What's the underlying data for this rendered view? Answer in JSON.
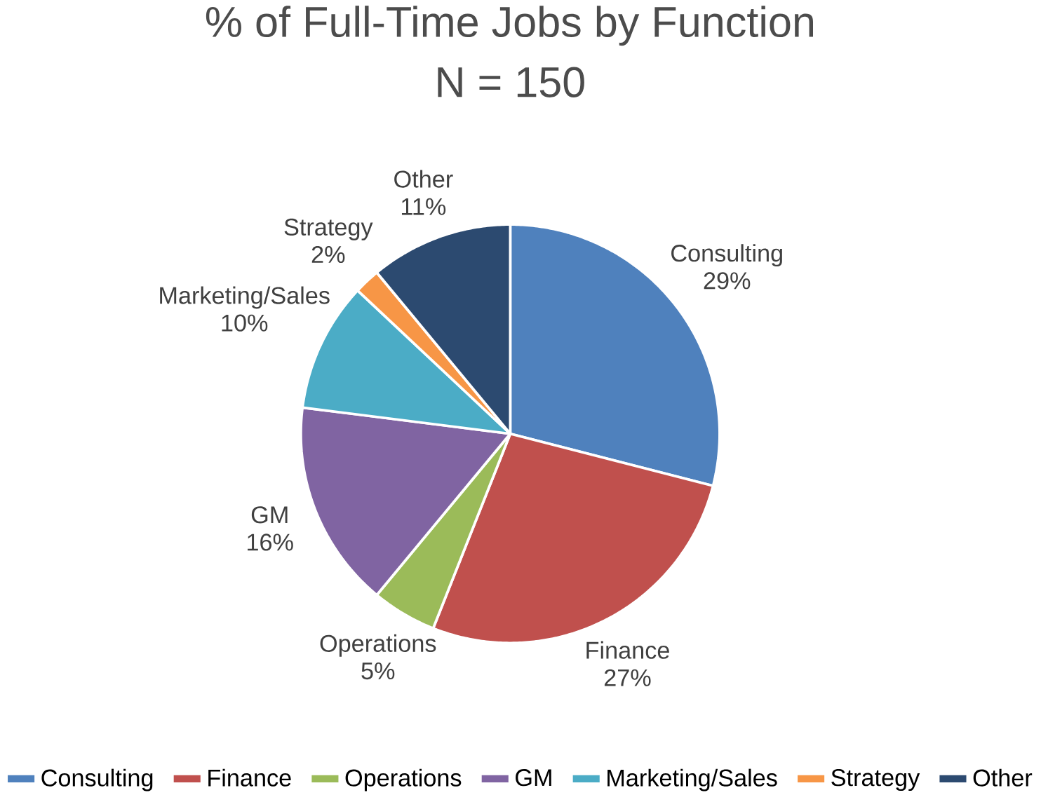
{
  "chart_data": {
    "type": "pie",
    "title": "% of Full-Time Jobs by Function",
    "subtitle": "N = 150",
    "categories": [
      "Consulting",
      "Finance",
      "Operations",
      "GM",
      "Marketing/Sales",
      "Strategy",
      "Other"
    ],
    "values": [
      29,
      27,
      5,
      16,
      10,
      2,
      11
    ],
    "value_labels": [
      "29%",
      "27%",
      "5%",
      "16%",
      "10%",
      "2%",
      "11%"
    ],
    "colors": [
      "#4f81bd",
      "#c0504d",
      "#9bbb59",
      "#8064a2",
      "#4bacc6",
      "#f79646",
      "#2c4a70"
    ],
    "legend": "bottom"
  }
}
